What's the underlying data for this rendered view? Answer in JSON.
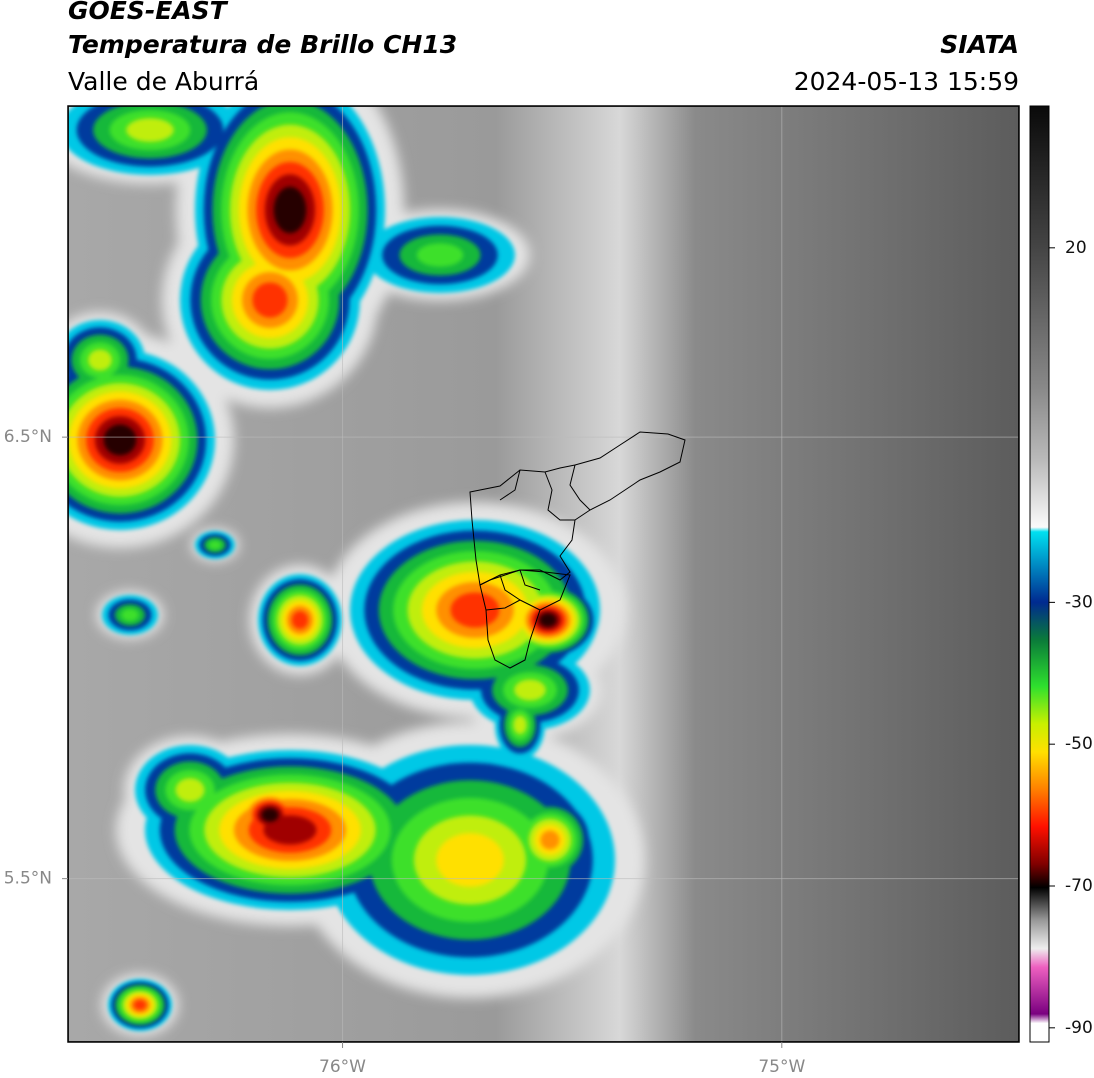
{
  "header": {
    "satellite": "GOES-EAST",
    "product": "Temperatura de Brillo CH13",
    "region": "Valle de Aburrá",
    "source": "SIATA",
    "datetime": "2024-05-13 15:59"
  },
  "map": {
    "latlim": [
      5.13,
      7.25
    ],
    "lonlim": [
      -76.625,
      -74.46
    ],
    "latticks": [
      {
        "value": 6.5,
        "label": "6.5°N"
      },
      {
        "value": 5.5,
        "label": "5.5°N"
      }
    ],
    "lonticks": [
      {
        "value": -76,
        "label": "76°W"
      },
      {
        "value": -75,
        "label": "75°W"
      }
    ],
    "grid": true
  },
  "colorbar": {
    "lim": [
      -92,
      40
    ],
    "ticks": [
      20,
      -30,
      -50,
      -70,
      -90
    ]
  }
}
